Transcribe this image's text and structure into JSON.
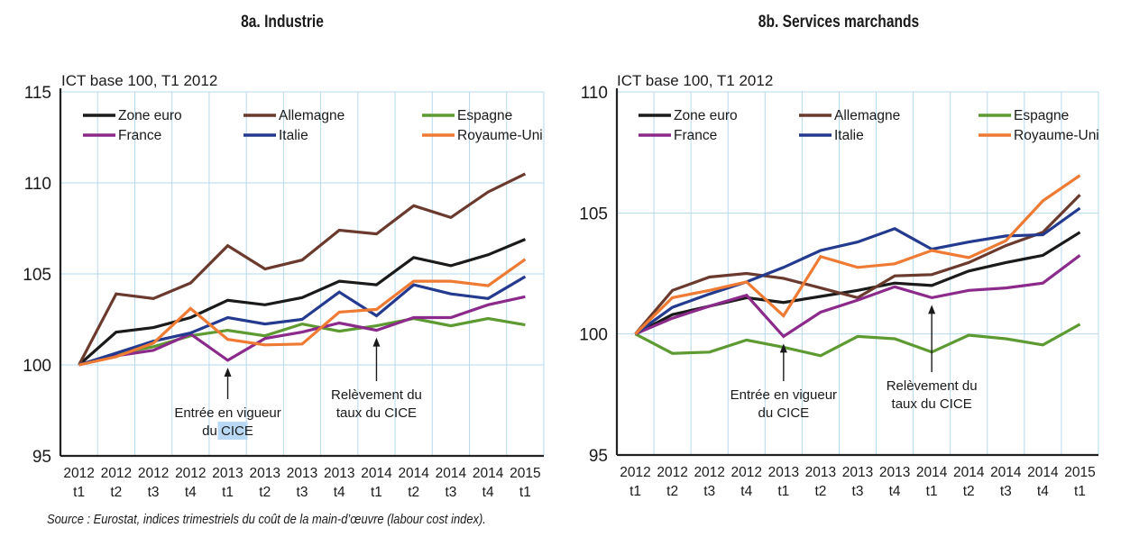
{
  "source": "Source : Eurostat, indices trimestriels du coût de la main-d’œuvre (labour cost index).",
  "chart_data": [
    {
      "id": "a",
      "type": "line",
      "title": "8a. Industrie",
      "ylabel": "ICT base 100, T1 2012",
      "xlabel": "",
      "ylim": [
        95,
        115
      ],
      "yticks": [
        95,
        100,
        105,
        110,
        115
      ],
      "grid": true,
      "legend": "top",
      "categories": [
        [
          "2012",
          "t1"
        ],
        [
          "2012",
          "t2"
        ],
        [
          "2012",
          "t3"
        ],
        [
          "2012",
          "t4"
        ],
        [
          "2013",
          "t1"
        ],
        [
          "2013",
          "t2"
        ],
        [
          "2013",
          "t3"
        ],
        [
          "2013",
          "t4"
        ],
        [
          "2014",
          "t1"
        ],
        [
          "2014",
          "t2"
        ],
        [
          "2014",
          "t3"
        ],
        [
          "2014",
          "t4"
        ],
        [
          "2015",
          "t1"
        ]
      ],
      "series": [
        {
          "name": "Zone euro",
          "color": "#1a1a1a",
          "values": [
            100,
            101.8,
            102.05,
            102.6,
            103.55,
            103.3,
            103.7,
            104.6,
            104.4,
            105.9,
            105.45,
            106.05,
            106.9
          ]
        },
        {
          "name": "Allemagne",
          "color": "#6b3a2e",
          "values": [
            100,
            103.9,
            103.65,
            104.5,
            106.55,
            105.27,
            105.76,
            107.4,
            107.2,
            108.75,
            108.1,
            109.5,
            110.5
          ]
        },
        {
          "name": "Espagne",
          "color": "#5e9a32",
          "values": [
            100,
            100.6,
            101.0,
            101.6,
            101.9,
            101.6,
            102.25,
            101.85,
            102.15,
            102.55,
            102.15,
            102.55,
            102.2
          ]
        },
        {
          "name": "France",
          "color": "#8b2a8b",
          "values": [
            100,
            100.5,
            100.8,
            101.7,
            100.25,
            101.45,
            101.8,
            102.3,
            101.9,
            102.6,
            102.6,
            103.3,
            103.75
          ]
        },
        {
          "name": "Italie",
          "color": "#243a8f",
          "values": [
            100,
            100.65,
            101.3,
            101.75,
            102.6,
            102.25,
            102.5,
            104.0,
            102.7,
            104.4,
            103.9,
            103.65,
            104.85
          ]
        },
        {
          "name": "Royaume-Uni",
          "color": "#ee7a33",
          "values": [
            100,
            100.45,
            101.2,
            103.1,
            101.4,
            101.1,
            101.15,
            102.9,
            103.05,
            104.6,
            104.6,
            104.35,
            105.8
          ]
        }
      ],
      "annotations": [
        {
          "lines": [
            "Entrée en vigueur",
            "du CICE"
          ],
          "highlight": "CICE",
          "category_index": 4
        },
        {
          "lines": [
            "Relèvement du",
            "taux du CICE"
          ],
          "category_index": 8
        }
      ]
    },
    {
      "id": "b",
      "type": "line",
      "title": "8b. Services marchands",
      "ylabel": "ICT base 100, T1 2012",
      "xlabel": "",
      "ylim": [
        95,
        110
      ],
      "yticks": [
        95,
        100,
        105,
        110
      ],
      "grid": true,
      "legend": "top",
      "categories": [
        [
          "2012",
          "t1"
        ],
        [
          "2012",
          "t2"
        ],
        [
          "2012",
          "t3"
        ],
        [
          "2012",
          "t4"
        ],
        [
          "2013",
          "t1"
        ],
        [
          "2013",
          "t2"
        ],
        [
          "2013",
          "t3"
        ],
        [
          "2013",
          "t4"
        ],
        [
          "2014",
          "t1"
        ],
        [
          "2014",
          "t2"
        ],
        [
          "2014",
          "t3"
        ],
        [
          "2014",
          "t4"
        ],
        [
          "2015",
          "t1"
        ]
      ],
      "series": [
        {
          "name": "Zone euro",
          "color": "#1a1a1a",
          "values": [
            100,
            100.8,
            101.15,
            101.5,
            101.3,
            101.55,
            101.8,
            102.1,
            102.0,
            102.6,
            102.95,
            103.25,
            104.2
          ]
        },
        {
          "name": "Allemagne",
          "color": "#6b3a2e",
          "values": [
            100,
            101.8,
            102.35,
            102.5,
            102.3,
            101.9,
            101.5,
            102.4,
            102.45,
            102.95,
            103.65,
            104.2,
            105.75
          ]
        },
        {
          "name": "Espagne",
          "color": "#5e9a32",
          "values": [
            100,
            99.2,
            99.25,
            99.75,
            99.45,
            99.1,
            99.9,
            99.8,
            99.25,
            99.95,
            99.8,
            99.55,
            100.4
          ]
        },
        {
          "name": "France",
          "color": "#8b2a8b",
          "values": [
            100,
            100.65,
            101.15,
            101.6,
            99.9,
            100.9,
            101.4,
            101.95,
            101.5,
            101.8,
            101.9,
            102.1,
            103.25
          ]
        },
        {
          "name": "Italie",
          "color": "#243a8f",
          "values": [
            100,
            101.1,
            101.65,
            102.15,
            102.75,
            103.45,
            103.8,
            104.35,
            103.5,
            103.8,
            104.05,
            104.1,
            105.2
          ]
        },
        {
          "name": "Royaume-Uni",
          "color": "#ee7a33",
          "values": [
            100,
            101.5,
            101.8,
            102.15,
            100.75,
            103.2,
            102.75,
            102.9,
            103.45,
            103.15,
            103.85,
            105.5,
            106.55
          ]
        }
      ],
      "annotations": [
        {
          "lines": [
            "Entrée en vigueur",
            "du CICE"
          ],
          "category_index": 4
        },
        {
          "lines": [
            "Relèvement du",
            "taux du CICE"
          ],
          "category_index": 8
        }
      ]
    }
  ]
}
